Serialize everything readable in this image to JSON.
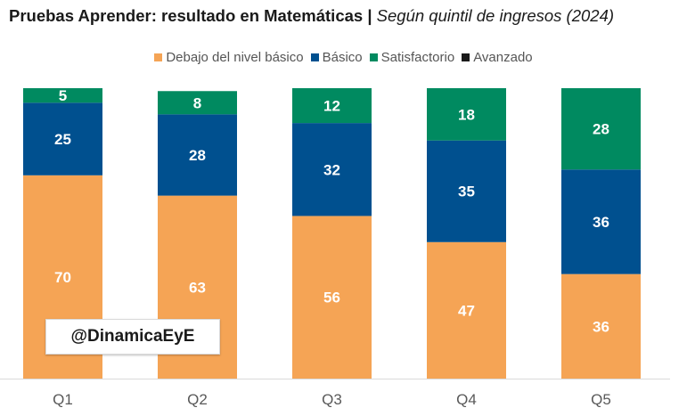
{
  "title": {
    "bold": "Pruebas Aprender: resultado en Matemáticas |",
    "italic": " Según quintil de ingresos (2024)"
  },
  "watermark": "@DinamicaEyE",
  "chart_data": {
    "type": "bar",
    "stacked": true,
    "categories": [
      "Q1",
      "Q2",
      "Q3",
      "Q4",
      "Q5"
    ],
    "series": [
      {
        "name": "Debajo del nivel básico",
        "color": "#F5A455",
        "values": [
          70,
          63,
          56,
          47,
          36
        ]
      },
      {
        "name": "Básico",
        "color": "#00508F",
        "values": [
          25,
          28,
          32,
          35,
          36
        ]
      },
      {
        "name": "Satisfactorio",
        "color": "#008A60",
        "values": [
          5,
          8,
          12,
          18,
          28
        ]
      },
      {
        "name": "Avanzado",
        "color": "#1a1a1a",
        "values": [
          0,
          0,
          0,
          0,
          0
        ]
      }
    ],
    "ylim": [
      0,
      100
    ],
    "legend_position": "top",
    "grid": false
  }
}
